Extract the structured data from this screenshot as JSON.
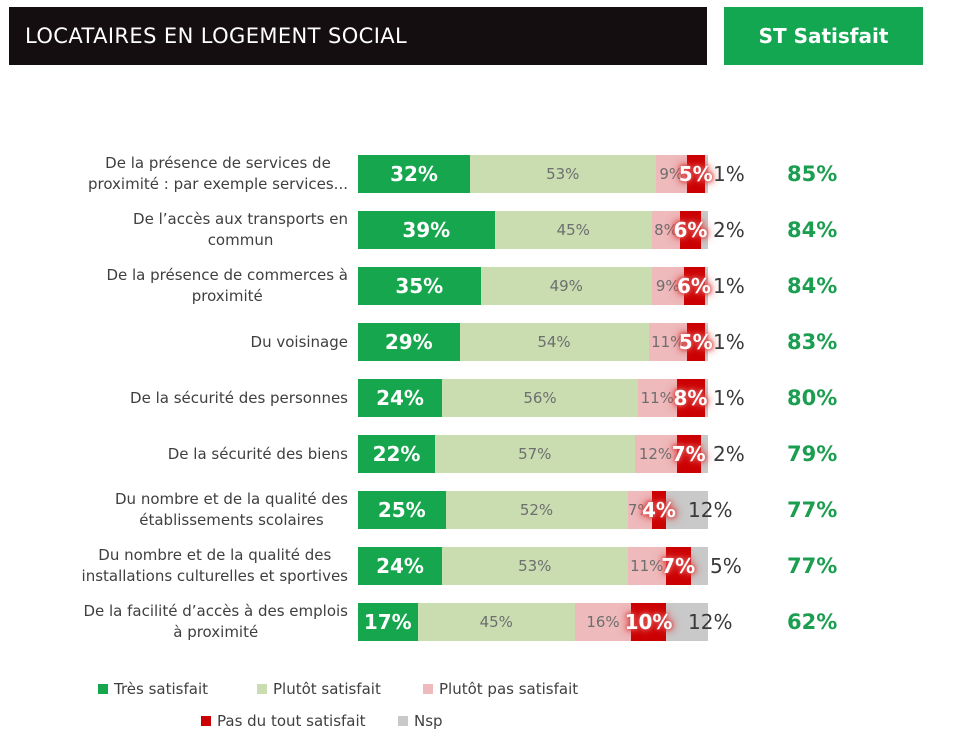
{
  "header": {
    "title": "LOCATAIRES EN LOGEMENT SOCIAL",
    "badge": "ST Satisfait"
  },
  "colors": {
    "header_bg": "#150e10",
    "badge_bg": "#14a751",
    "st_text": "#1b9e50",
    "category_text": "#3f3f3f",
    "inner_label_text": "#6e6e6e",
    "glow": "#dd4b4b"
  },
  "chart_data": {
    "type": "bar",
    "orientation": "horizontal-stacked",
    "title": "LOCATAIRES EN LOGEMENT SOCIAL",
    "xlim": [
      0,
      100
    ],
    "grid": false,
    "legend_position": "bottom",
    "categories": [
      "De la présence de services de\nproximité : par exemple services...",
      "De l’accès aux transports en\ncommun",
      "De la présence de commerces à\nproximité",
      "Du voisinage",
      "De la sécurité des personnes",
      "De la sécurité des biens",
      "Du nombre et de la qualité des\nétablissements scolaires",
      "Du nombre et de la qualité des\ninstallations culturelles et sportives",
      "De la facilité d’accès à des emplois\nà proximité"
    ],
    "series": [
      {
        "name": "Très satisfait",
        "key": "tres-satisfait",
        "color": "#16a64d",
        "values": [
          32,
          39,
          35,
          29,
          24,
          22,
          25,
          24,
          17
        ]
      },
      {
        "name": "Plutôt satisfait",
        "key": "plutot-satisfait",
        "color": "#c9ddb1",
        "values": [
          53,
          45,
          49,
          54,
          56,
          57,
          52,
          53,
          45
        ]
      },
      {
        "name": "Plutôt pas satisfait",
        "key": "plutot-pas-satisfait",
        "color": "#eebabc",
        "values": [
          9,
          8,
          9,
          11,
          11,
          12,
          7,
          11,
          16
        ]
      },
      {
        "name": "Pas du tout satisfait",
        "key": "pas-du-tout-satisfait",
        "color": "#cb0002",
        "values": [
          5,
          6,
          6,
          5,
          8,
          7,
          4,
          7,
          10
        ]
      },
      {
        "name": "Nsp",
        "key": "nsp",
        "color": "#c9c9c9",
        "values": [
          1,
          2,
          1,
          1,
          1,
          2,
          12,
          5,
          12
        ]
      }
    ],
    "st_satisfait_label": "ST Satisfait",
    "st_satisfait": [
      "85%",
      "84%",
      "84%",
      "83%",
      "80%",
      "79%",
      "77%",
      "77%",
      "62%"
    ]
  }
}
